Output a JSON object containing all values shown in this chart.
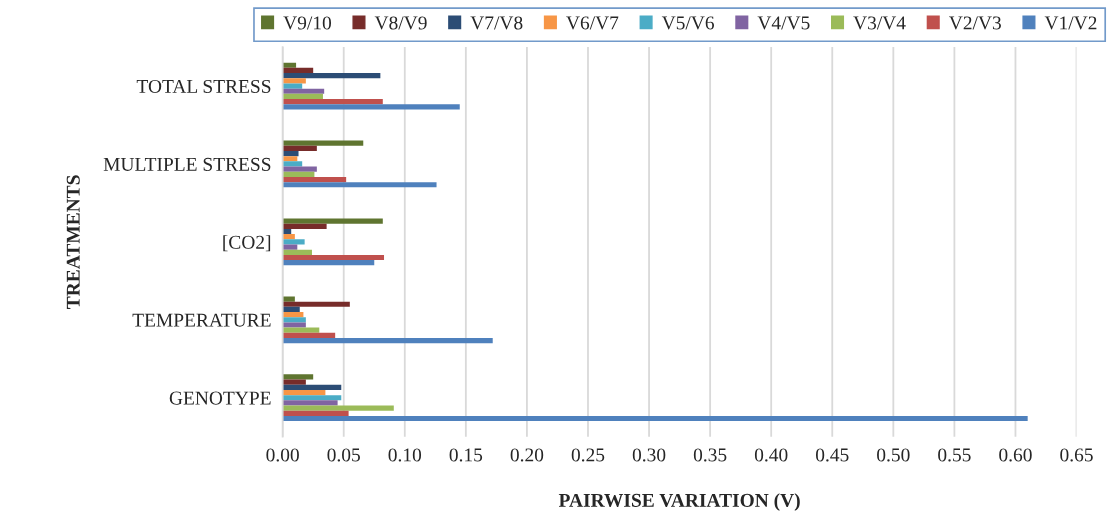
{
  "chart_data": {
    "type": "bar",
    "orientation": "horizontal",
    "xlabel": "PAIRWISE VARIATION (V)",
    "ylabel": "TREATMENTS",
    "categories": [
      "TOTAL STRESS",
      "MULTIPLE STRESS",
      "[CO2]",
      "TEMPERATURE",
      "GENOTYPE"
    ],
    "series": [
      {
        "name": "V9/10",
        "color": "#5f7530",
        "values": [
          0.011,
          0.066,
          0.082,
          0.01,
          0.025
        ]
      },
      {
        "name": "V8/V9",
        "color": "#772c2a",
        "values": [
          0.025,
          0.028,
          0.036,
          0.055,
          0.019
        ]
      },
      {
        "name": "V7/V8",
        "color": "#2c4d75",
        "values": [
          0.08,
          0.013,
          0.007,
          0.014,
          0.048
        ]
      },
      {
        "name": "V6/V7",
        "color": "#f79646",
        "values": [
          0.019,
          0.012,
          0.01,
          0.017,
          0.035
        ]
      },
      {
        "name": "V5/V6",
        "color": "#4bacc6",
        "values": [
          0.016,
          0.016,
          0.018,
          0.019,
          0.048
        ]
      },
      {
        "name": "V4/V5",
        "color": "#8064a2",
        "values": [
          0.034,
          0.028,
          0.012,
          0.019,
          0.045
        ]
      },
      {
        "name": "V3/V4",
        "color": "#9bbb59",
        "values": [
          0.033,
          0.026,
          0.024,
          0.03,
          0.091
        ]
      },
      {
        "name": "V2/V3",
        "color": "#c0504d",
        "values": [
          0.082,
          0.052,
          0.083,
          0.043,
          0.054
        ]
      },
      {
        "name": "V1/V2",
        "color": "#4f81bd",
        "values": [
          0.145,
          0.126,
          0.075,
          0.172,
          0.61
        ]
      }
    ],
    "xlim": [
      0,
      0.65
    ],
    "xticks": [
      {
        "value": 0,
        "label": "0.00"
      },
      {
        "value": 0.05,
        "label": "0.05"
      },
      {
        "value": 0.1,
        "label": "0.10"
      },
      {
        "value": 0.15,
        "label": "0.15"
      },
      {
        "value": 0.2,
        "label": "0.20"
      },
      {
        "value": 0.25,
        "label": "0.25"
      },
      {
        "value": 0.3,
        "label": "0.30"
      },
      {
        "value": 0.35,
        "label": "0.35"
      },
      {
        "value": 0.4,
        "label": "0.40"
      },
      {
        "value": 0.45,
        "label": "0.45"
      },
      {
        "value": 0.5,
        "label": "0.50"
      },
      {
        "value": 0.55,
        "label": "0.55"
      },
      {
        "value": 0.6,
        "label": "0.60"
      },
      {
        "value": 0.65,
        "label": "0.65"
      }
    ],
    "grid": "x",
    "legend": "top"
  }
}
